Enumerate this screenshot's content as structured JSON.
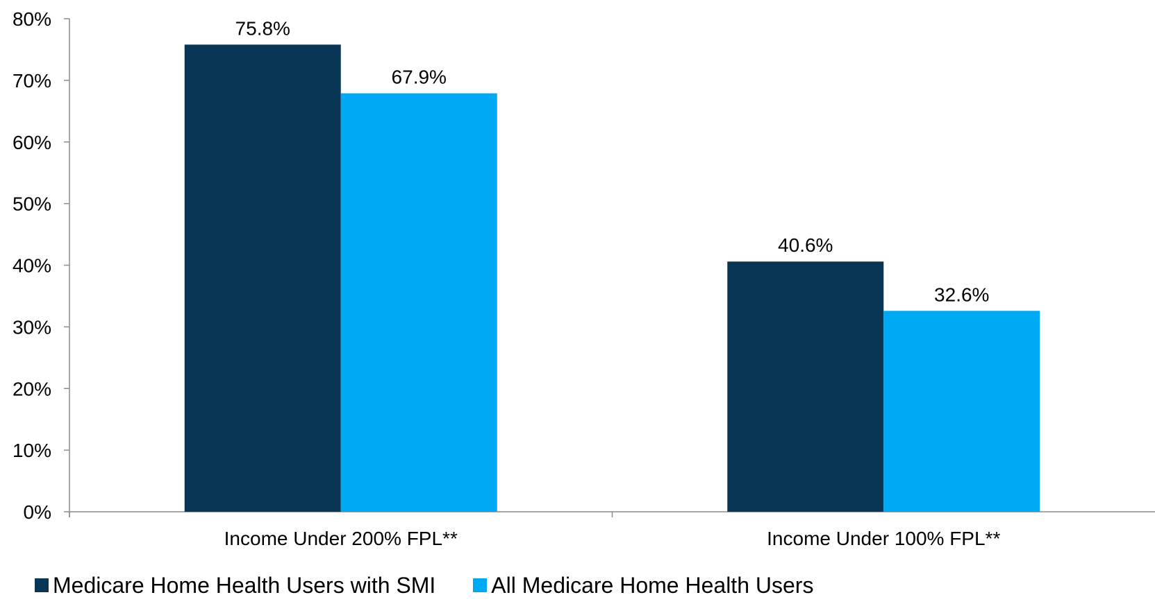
{
  "chart_data": {
    "type": "bar",
    "title": "",
    "xlabel": "",
    "ylabel": "",
    "categories": [
      "Income Under 200% FPL**",
      "Income Under 100% FPL**"
    ],
    "series": [
      {
        "name": "Medicare Home Health Users with SMI",
        "color": "#0a3656",
        "values": [
          75.8,
          40.6
        ],
        "labels": [
          "75.8%",
          "40.6%"
        ]
      },
      {
        "name": "All Medicare Home Health Users",
        "color": "#00a9f4",
        "values": [
          67.9,
          32.6
        ],
        "labels": [
          "67.9%",
          "32.6%"
        ]
      }
    ],
    "ylim": [
      0,
      80
    ],
    "yticks": [
      0,
      10,
      20,
      30,
      40,
      50,
      60,
      70,
      80
    ],
    "ytick_labels": [
      "0%",
      "10%",
      "20%",
      "30%",
      "40%",
      "50%",
      "60%",
      "70%",
      "80%"
    ],
    "grid": false,
    "legend_position": "bottom-left"
  }
}
